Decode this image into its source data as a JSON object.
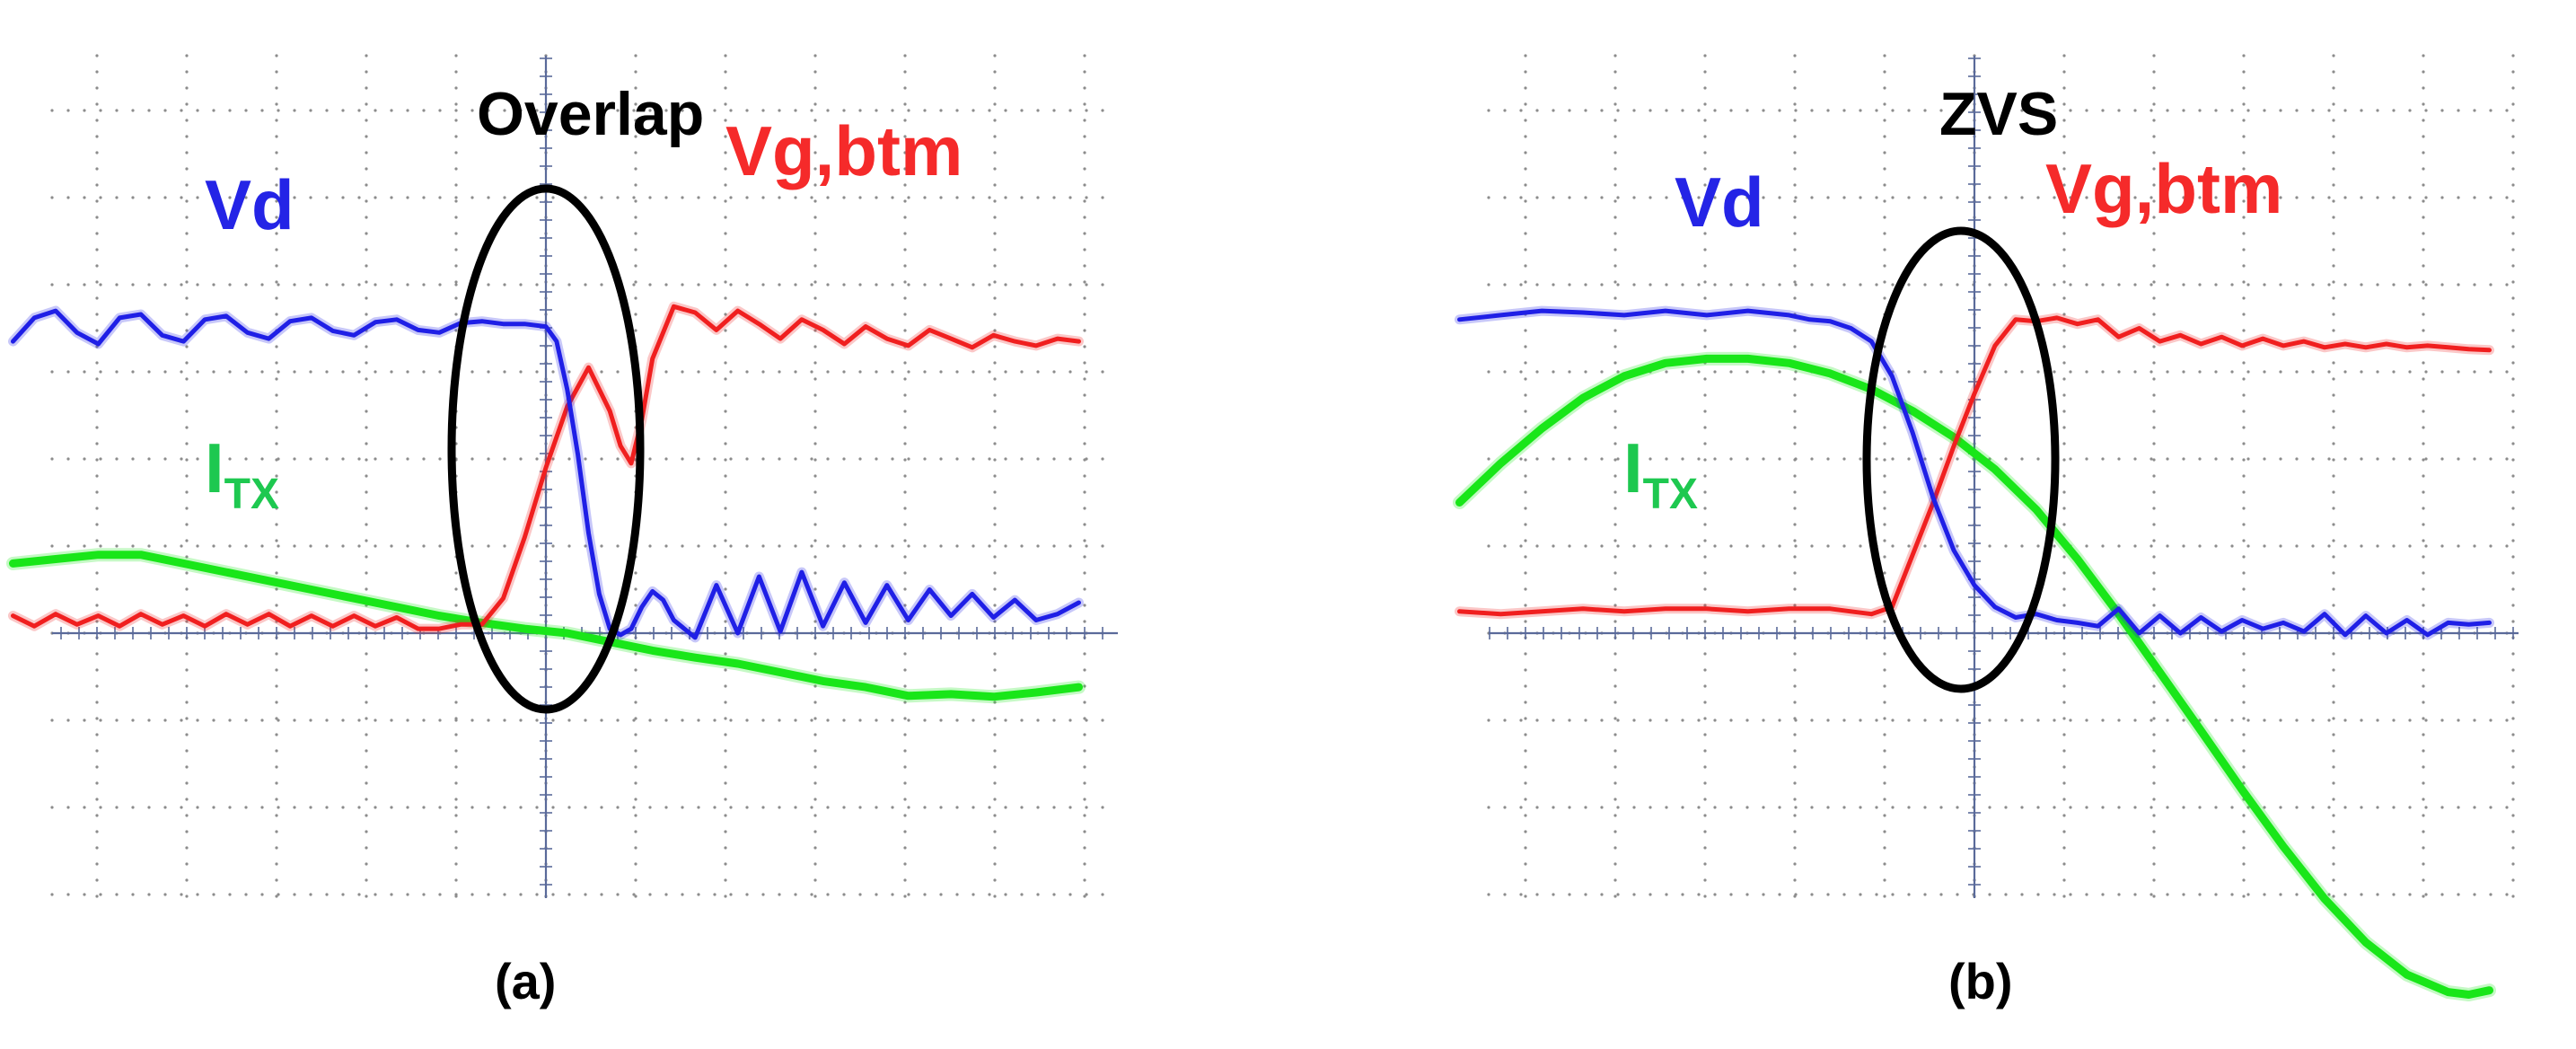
{
  "colors": {
    "vd": "#1f1fe6",
    "vg": "#f01f1f",
    "itx": "#19e619",
    "label_vd": "#2424e6",
    "label_vg": "#f52a2a",
    "label_itx": "#1ec850",
    "annotation": "#000000",
    "grid": "#8c8c8c",
    "axis": "#5a6a9a"
  },
  "chart_data": [
    {
      "type": "line",
      "panel_label": "(a)",
      "annotation": "Overlap",
      "grid": true,
      "xlim": [
        -5,
        5
      ],
      "ylim": [
        -6,
        2.6
      ],
      "series": [
        {
          "name": "Vd",
          "label_main": "Vd",
          "label_sub": "",
          "x": [
            -5,
            -4.8,
            -4.6,
            -4.4,
            -4.2,
            -4,
            -3.8,
            -3.6,
            -3.4,
            -3.2,
            -3,
            -2.8,
            -2.6,
            -2.4,
            -2.2,
            -2,
            -1.8,
            -1.6,
            -1.4,
            -1.2,
            -1,
            -0.8,
            -0.6,
            -0.4,
            -0.2,
            0,
            0.1,
            0.2,
            0.3,
            0.4,
            0.5,
            0.6,
            0.7,
            0.8,
            0.9,
            1,
            1.1,
            1.2,
            1.4,
            1.6,
            1.8,
            2,
            2.2,
            2.4,
            2.6,
            2.8,
            3,
            3.2,
            3.4,
            3.6,
            3.8,
            4,
            4.2,
            4.4,
            4.6,
            4.8,
            5
          ],
          "y": [
            1.35,
            1.62,
            1.7,
            1.45,
            1.32,
            1.62,
            1.66,
            1.42,
            1.35,
            1.6,
            1.64,
            1.45,
            1.38,
            1.58,
            1.62,
            1.47,
            1.42,
            1.57,
            1.6,
            1.48,
            1.45,
            1.56,
            1.58,
            1.55,
            1.55,
            1.52,
            1.35,
            0.8,
            0.05,
            -0.85,
            -1.55,
            -1.95,
            -2.02,
            -1.95,
            -1.7,
            -1.52,
            -1.62,
            -1.85,
            -2.05,
            -1.45,
            -2.0,
            -1.35,
            -1.98,
            -1.3,
            -1.92,
            -1.42,
            -1.88,
            -1.45,
            -1.85,
            -1.5,
            -1.8,
            -1.55,
            -1.82,
            -1.62,
            -1.85,
            -1.78,
            -1.65
          ]
        },
        {
          "name": "Vg,btm",
          "label_main": "Vg,btm",
          "label_sub": "",
          "x": [
            -5,
            -4.8,
            -4.6,
            -4.4,
            -4.2,
            -4,
            -3.8,
            -3.6,
            -3.4,
            -3.2,
            -3,
            -2.8,
            -2.6,
            -2.4,
            -2.2,
            -2,
            -1.8,
            -1.6,
            -1.4,
            -1.2,
            -1,
            -0.8,
            -0.6,
            -0.4,
            -0.2,
            0,
            0.2,
            0.4,
            0.6,
            0.7,
            0.8,
            0.9,
            1,
            1.2,
            1.4,
            1.6,
            1.8,
            2,
            2.2,
            2.4,
            2.6,
            2.8,
            3,
            3.2,
            3.4,
            3.6,
            3.8,
            4,
            4.2,
            4.4,
            4.6,
            4.8,
            5
          ],
          "y": [
            -1.8,
            -1.92,
            -1.78,
            -1.9,
            -1.8,
            -1.92,
            -1.78,
            -1.9,
            -1.8,
            -1.92,
            -1.78,
            -1.9,
            -1.78,
            -1.92,
            -1.8,
            -1.92,
            -1.8,
            -1.92,
            -1.82,
            -1.95,
            -1.95,
            -1.9,
            -1.9,
            -1.6,
            -0.9,
            -0.1,
            0.6,
            1.05,
            0.55,
            0.15,
            -0.05,
            0.45,
            1.15,
            1.75,
            1.68,
            1.48,
            1.7,
            1.55,
            1.38,
            1.6,
            1.48,
            1.32,
            1.52,
            1.38,
            1.3,
            1.48,
            1.38,
            1.28,
            1.42,
            1.35,
            1.3,
            1.38,
            1.35
          ]
        },
        {
          "name": "ITX",
          "label_main": "I",
          "label_sub": "TX",
          "x": [
            -5,
            -4.6,
            -4.2,
            -3.8,
            -3.4,
            -3,
            -2.6,
            -2.2,
            -1.8,
            -1.4,
            -1,
            -0.6,
            -0.2,
            0.2,
            0.6,
            1,
            1.4,
            1.8,
            2.2,
            2.6,
            3,
            3.4,
            3.8,
            4.2,
            4.6,
            5
          ],
          "y": [
            -1.2,
            -1.15,
            -1.1,
            -1.1,
            -1.2,
            -1.3,
            -1.4,
            -1.5,
            -1.6,
            -1.7,
            -1.8,
            -1.88,
            -1.95,
            -2.0,
            -2.1,
            -2.2,
            -2.28,
            -2.35,
            -2.45,
            -2.55,
            -2.62,
            -2.72,
            -2.7,
            -2.73,
            -2.68,
            -2.62
          ]
        }
      ]
    },
    {
      "type": "line",
      "panel_label": "(b)",
      "annotation": "ZVS",
      "grid": true,
      "xlim": [
        -5,
        5
      ],
      "ylim": [
        -6,
        2.6
      ],
      "series": [
        {
          "name": "Vd",
          "label_main": "Vd",
          "label_sub": "",
          "x": [
            -5,
            -4.6,
            -4.2,
            -3.8,
            -3.4,
            -3,
            -2.6,
            -2.2,
            -1.8,
            -1.6,
            -1.4,
            -1.2,
            -1,
            -0.8,
            -0.6,
            -0.4,
            -0.2,
            0,
            0.2,
            0.4,
            0.6,
            0.8,
            1,
            1.2,
            1.4,
            1.6,
            1.8,
            2,
            2.2,
            2.4,
            2.6,
            2.8,
            3,
            3.2,
            3.4,
            3.6,
            3.8,
            4,
            4.2,
            4.4,
            4.6,
            4.8,
            5
          ],
          "y": [
            1.6,
            1.65,
            1.7,
            1.68,
            1.65,
            1.7,
            1.65,
            1.7,
            1.65,
            1.6,
            1.58,
            1.5,
            1.35,
            0.95,
            0.3,
            -0.45,
            -1.05,
            -1.45,
            -1.7,
            -1.82,
            -1.78,
            -1.85,
            -1.88,
            -1.92,
            -1.72,
            -2.0,
            -1.8,
            -2.0,
            -1.82,
            -1.98,
            -1.85,
            -1.95,
            -1.88,
            -1.98,
            -1.78,
            -2.02,
            -1.8,
            -2.0,
            -1.85,
            -2.02,
            -1.88,
            -1.9,
            -1.88
          ]
        },
        {
          "name": "Vg,btm",
          "label_main": "Vg,btm",
          "label_sub": "",
          "x": [
            -5,
            -4.6,
            -4.2,
            -3.8,
            -3.4,
            -3,
            -2.6,
            -2.2,
            -1.8,
            -1.4,
            -1.2,
            -1,
            -0.8,
            -0.6,
            -0.4,
            -0.2,
            0,
            0.2,
            0.4,
            0.6,
            0.8,
            1,
            1.2,
            1.4,
            1.6,
            1.8,
            2,
            2.2,
            2.4,
            2.6,
            2.8,
            3,
            3.2,
            3.4,
            3.6,
            3.8,
            4,
            4.2,
            4.4,
            4.6,
            4.8,
            5
          ],
          "y": [
            -1.75,
            -1.78,
            -1.75,
            -1.72,
            -1.75,
            -1.72,
            -1.72,
            -1.75,
            -1.72,
            -1.72,
            -1.75,
            -1.78,
            -1.7,
            -1.1,
            -0.5,
            0.15,
            0.75,
            1.3,
            1.6,
            1.58,
            1.62,
            1.55,
            1.6,
            1.4,
            1.5,
            1.35,
            1.42,
            1.32,
            1.4,
            1.3,
            1.38,
            1.3,
            1.35,
            1.28,
            1.32,
            1.28,
            1.32,
            1.28,
            1.3,
            1.28,
            1.26,
            1.25
          ]
        },
        {
          "name": "ITX",
          "label_main": "I",
          "label_sub": "TX",
          "x": [
            -5,
            -4.6,
            -4.2,
            -3.8,
            -3.4,
            -3,
            -2.6,
            -2.2,
            -1.8,
            -1.4,
            -1,
            -0.6,
            -0.2,
            0.2,
            0.6,
            1,
            1.4,
            1.8,
            2.2,
            2.6,
            3,
            3.4,
            3.8,
            4.2,
            4.6,
            4.8,
            5
          ],
          "y": [
            -0.5,
            -0.05,
            0.35,
            0.7,
            0.95,
            1.1,
            1.15,
            1.15,
            1.1,
            0.98,
            0.8,
            0.55,
            0.25,
            -0.12,
            -0.58,
            -1.15,
            -1.78,
            -2.45,
            -3.12,
            -3.8,
            -4.45,
            -5.05,
            -5.55,
            -5.92,
            -6.12,
            -6.15,
            -6.1
          ]
        }
      ]
    }
  ]
}
